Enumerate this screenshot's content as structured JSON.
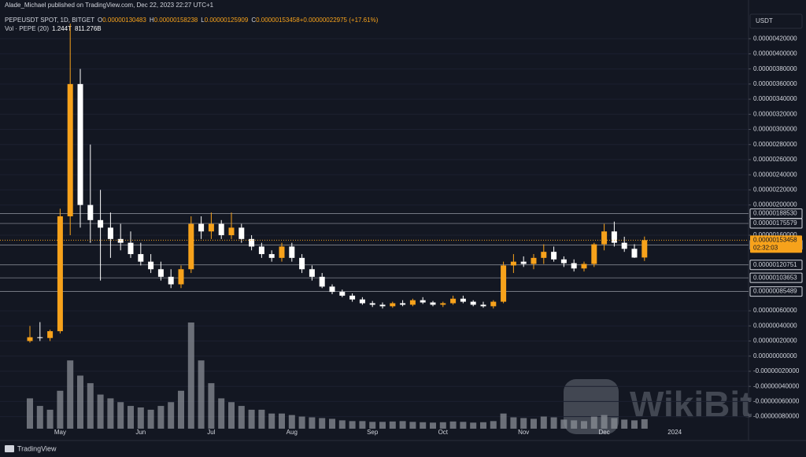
{
  "chart_data": {
    "type": "candlestick",
    "publisher": "Alade_Michael published on TradingView.com, Dec 22, 2023 22:27 UTC+1",
    "symbol": "PEPEUSDT SPOT, 1D, BITGET",
    "ohlc_legend": [
      {
        "key": "O",
        "text": "0.00000130483"
      },
      {
        "key": "H",
        "text": "0.00000158238"
      },
      {
        "key": "L",
        "text": "0.00000125909"
      },
      {
        "key": "C",
        "text": "0.00000153458"
      },
      {
        "key": "",
        "text": "+0.00000022975 (+17.61%)"
      }
    ],
    "volume_legend": {
      "name": "Vol · PEPE (20)",
      "last": "1.244T",
      "average": "811.276B"
    },
    "currency": "USDT",
    "footer": "TradingView",
    "watermark": "WikiBit",
    "categories": [
      null,
      null,
      null,
      "May",
      null,
      null,
      null,
      null,
      null,
      null,
      null,
      "Jun",
      null,
      null,
      null,
      null,
      null,
      null,
      "Jul",
      null,
      null,
      null,
      null,
      null,
      null,
      null,
      "Aug",
      null,
      null,
      null,
      null,
      null,
      null,
      null,
      "Sep",
      null,
      null,
      null,
      null,
      null,
      null,
      "Oct",
      null,
      null,
      null,
      null,
      null,
      null,
      null,
      "Nov",
      null,
      null,
      null,
      null,
      null,
      null,
      null,
      "Dec",
      null,
      null,
      null,
      null,
      null,
      null,
      "2024"
    ],
    "open": [
      2e-07,
      2.5e-07,
      2.4e-07,
      3.3e-07,
      1.85e-06,
      3.6e-06,
      2e-06,
      1.8e-06,
      1.7e-06,
      1.55e-06,
      1.5e-06,
      1.35e-06,
      1.25e-06,
      1.15e-06,
      1.05e-06,
      9.5e-07,
      1.15e-06,
      1.75e-06,
      1.65e-06,
      1.75e-06,
      1.6e-06,
      1.7e-06,
      1.55e-06,
      1.45e-06,
      1.35e-06,
      1.3e-06,
      1.45e-06,
      1.3e-06,
      1.15e-06,
      1.05e-06,
      9.2e-07,
      8.5e-07,
      8e-07,
      7.5e-07,
      7e-07,
      6.8e-07,
      6.6e-07,
      7e-07,
      6.8e-07,
      7.4e-07,
      7.1e-07,
      6.8e-07,
      7e-07,
      7.6e-07,
      7.2e-07,
      6.8e-07,
      6.6e-07,
      7.2e-07,
      1.2e-06,
      1.25e-06,
      1.22e-06,
      1.3e-06,
      1.38e-06,
      1.28e-06,
      1.23e-06,
      1.16e-06,
      1.22e-06,
      1.48e-06,
      1.65e-06,
      1.5e-06,
      1.42e-06,
      1.30483e-06,
      null,
      null,
      null
    ],
    "high": [
      4e-07,
      4.5e-07,
      3.5e-07,
      1.95e-06,
      4.4e-06,
      3.8e-06,
      2.8e-06,
      2.2e-06,
      1.9e-06,
      1.75e-06,
      1.65e-06,
      1.5e-06,
      1.35e-06,
      1.25e-06,
      1.15e-06,
      1.2e-06,
      1.85e-06,
      1.85e-06,
      1.9e-06,
      1.8e-06,
      1.9e-06,
      1.75e-06,
      1.6e-06,
      1.5e-06,
      1.4e-06,
      1.5e-06,
      1.5e-06,
      1.35e-06,
      1.2e-06,
      1.1e-06,
      9.5e-07,
      8.8e-07,
      8.3e-07,
      7.8e-07,
      7.3e-07,
      7.1e-07,
      7.2e-07,
      7.4e-07,
      7.6e-07,
      7.8e-07,
      7.3e-07,
      7.2e-07,
      8e-07,
      8e-07,
      7.4e-07,
      7.2e-07,
      7.4e-07,
      1.25e-06,
      1.35e-06,
      1.32e-06,
      1.35e-06,
      1.48e-06,
      1.45e-06,
      1.32e-06,
      1.28e-06,
      1.25e-06,
      1.5e-06,
      1.75e-06,
      1.78e-06,
      1.58e-06,
      1.48e-06,
      1.58238e-06,
      null,
      null,
      null
    ],
    "low": [
      1.8e-07,
      2e-07,
      2e-07,
      3e-07,
      1.6e-06,
      1.7e-06,
      1.5e-06,
      1e-06,
      1.3e-06,
      1.4e-06,
      1.3e-06,
      1.2e-06,
      1.1e-06,
      1e-06,
      9e-07,
      9e-07,
      1.1e-06,
      1.55e-06,
      1.55e-06,
      1.55e-06,
      1.55e-06,
      1.5e-06,
      1.4e-06,
      1.3e-06,
      1.25e-06,
      1.25e-06,
      1.25e-06,
      1.1e-06,
      1e-06,
      9e-07,
      8.2e-07,
      7.8e-07,
      7.2e-07,
      6.8e-07,
      6.5e-07,
      6.3e-07,
      6.4e-07,
      6.6e-07,
      6.6e-07,
      6.9e-07,
      6.6e-07,
      6.5e-07,
      6.8e-07,
      7e-07,
      6.6e-07,
      6.4e-07,
      6.3e-07,
      7e-07,
      1.1e-06,
      1.18e-06,
      1.15e-06,
      1.22e-06,
      1.25e-06,
      1.18e-06,
      1.12e-06,
      1.12e-06,
      1.18e-06,
      1.4e-06,
      1.45e-06,
      1.38e-06,
      1.3e-06,
      1.25909e-06,
      null,
      null,
      null
    ],
    "close": [
      2.5e-07,
      2.4e-07,
      3.3e-07,
      1.85e-06,
      3.6e-06,
      2e-06,
      1.8e-06,
      1.7e-06,
      1.55e-06,
      1.5e-06,
      1.35e-06,
      1.25e-06,
      1.15e-06,
      1.05e-06,
      9.5e-07,
      1.15e-06,
      1.75e-06,
      1.65e-06,
      1.75e-06,
      1.6e-06,
      1.7e-06,
      1.55e-06,
      1.45e-06,
      1.35e-06,
      1.3e-06,
      1.45e-06,
      1.3e-06,
      1.15e-06,
      1.05e-06,
      9.2e-07,
      8.5e-07,
      8e-07,
      7.5e-07,
      7e-07,
      6.8e-07,
      6.6e-07,
      7e-07,
      6.8e-07,
      7.4e-07,
      7.1e-07,
      6.8e-07,
      7e-07,
      7.6e-07,
      7.2e-07,
      6.8e-07,
      6.6e-07,
      7.2e-07,
      1.2e-06,
      1.25e-06,
      1.22e-06,
      1.3e-06,
      1.38e-06,
      1.28e-06,
      1.23e-06,
      1.16e-06,
      1.22e-06,
      1.48e-06,
      1.65e-06,
      1.5e-06,
      1.42e-06,
      1.304e-06,
      1.53458e-06,
      null,
      null,
      null
    ],
    "volume": [
      4000,
      3000,
      2500,
      5000,
      9000,
      7000,
      6000,
      4500,
      4000,
      3500,
      3000,
      2800,
      2500,
      3000,
      3500,
      5000,
      14000,
      9000,
      6000,
      4000,
      3500,
      3000,
      2500,
      2500,
      2000,
      2000,
      1800,
      1600,
      1500,
      1400,
      1300,
      1100,
      1000,
      1000,
      900,
      900,
      950,
      1000,
      900,
      850,
      800,
      850,
      950,
      900,
      800,
      850,
      1000,
      2000,
      1500,
      1400,
      1300,
      1600,
      1500,
      1200,
      1100,
      1000,
      1600,
      1800,
      1400,
      1200,
      1100,
      1244,
      null,
      null,
      null
    ],
    "up_color": "#f7a21b",
    "down_color": "#ffffff",
    "volume_color": "#8a8d96",
    "ylim": [
      -9.6e-07,
      4.4e-06
    ],
    "yticks": [
      {
        "value": 4.2e-06,
        "label": "0.00000420000"
      },
      {
        "value": 4e-06,
        "label": "0.00000400000"
      },
      {
        "value": 3.8e-06,
        "label": "0.00000380000"
      },
      {
        "value": 3.6e-06,
        "label": "0.00000360000"
      },
      {
        "value": 3.4e-06,
        "label": "0.00000340000"
      },
      {
        "value": 3.2e-06,
        "label": "0.00000320000"
      },
      {
        "value": 3e-06,
        "label": "0.00000300000"
      },
      {
        "value": 2.8e-06,
        "label": "0.00000280000"
      },
      {
        "value": 2.6e-06,
        "label": "0.00000260000"
      },
      {
        "value": 2.4e-06,
        "label": "0.00000240000"
      },
      {
        "value": 2.2e-06,
        "label": "0.00000220000"
      },
      {
        "value": 2e-06,
        "label": "0.00000200000"
      },
      {
        "value": 1.6e-06,
        "label": "0.00000160000"
      },
      {
        "value": 6e-07,
        "label": "0.00000060000"
      },
      {
        "value": 4e-07,
        "label": "0.00000040000"
      },
      {
        "value": 2e-07,
        "label": "0.00000020000"
      },
      {
        "value": 0,
        "label": "0.00000000000"
      },
      {
        "value": -2e-07,
        "label": "-0.00000020000"
      },
      {
        "value": -4e-07,
        "label": "-0.00000040000"
      },
      {
        "value": -6e-07,
        "label": "-0.00000060000"
      },
      {
        "value": -8e-07,
        "label": "-0.00000080000"
      }
    ],
    "grid": true,
    "levels": [
      {
        "value": 1.8853e-06,
        "label": "0.00000188530"
      },
      {
        "value": 1.75579e-06,
        "label": "0.00000175579"
      },
      {
        "value": 1.47118e-06,
        "label": "0.00000147118"
      },
      {
        "value": 1.20751e-06,
        "label": "0.00000120751"
      },
      {
        "value": 1.03653e-06,
        "label": "0.00000103653"
      },
      {
        "value": 8.5489e-07,
        "label": "0.00000085489"
      }
    ],
    "last_price": {
      "value": 1.53458e-06,
      "label": "0.00000153458",
      "countdown": "02:32:03"
    }
  }
}
